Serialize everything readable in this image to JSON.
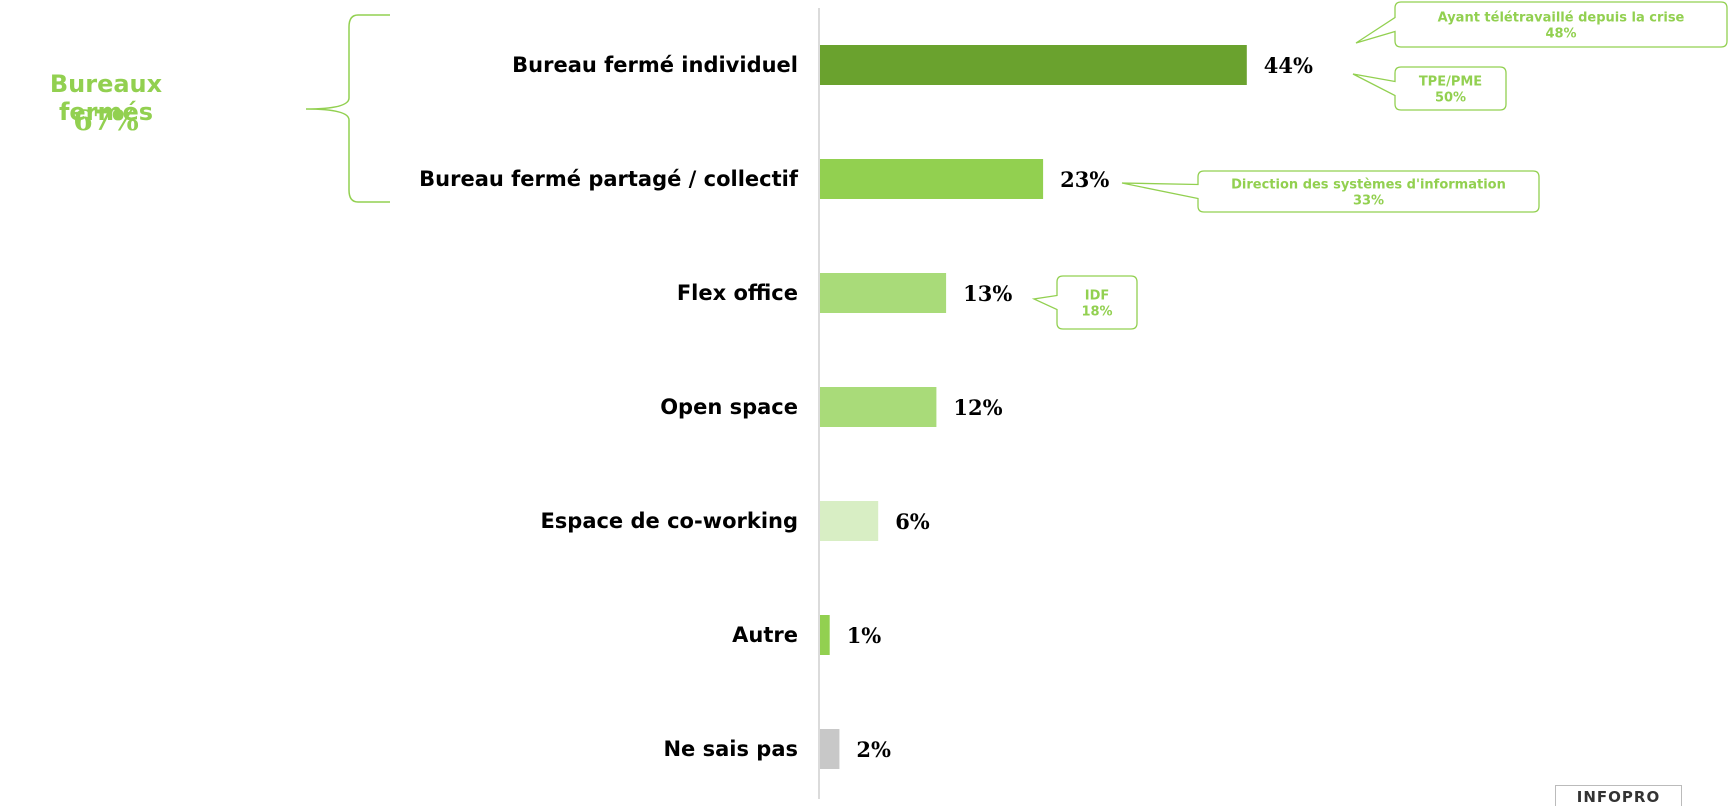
{
  "chart_data": {
    "type": "bar",
    "orientation": "horizontal",
    "categories": [
      "Bureau fermé individuel",
      "Bureau fermé partagé / collectif",
      "Flex office",
      "Open space",
      "Espace de co-working",
      "Autre",
      "Ne sais pas"
    ],
    "values": [
      44,
      23,
      13,
      12,
      6,
      1,
      2
    ],
    "value_labels": [
      "44%",
      "23%",
      "13%",
      "12%",
      "6%",
      "1%",
      "2%"
    ],
    "unit": "%",
    "bar_colors": [
      "#6aa22e",
      "#92d050",
      "#a9db79",
      "#a9db79",
      "#d8eec4",
      "#92d050",
      "#c8c8c8"
    ],
    "xlim": [
      0,
      100
    ],
    "grid": false,
    "legend": "none",
    "group_annotation": {
      "title": "Bureaux fermés",
      "value": "67%",
      "applies_to": [
        "Bureau fermé individuel",
        "Bureau fermé partagé / collectif"
      ]
    },
    "callouts": [
      {
        "category": "Bureau fermé individuel",
        "label": "Ayant télétravaillé depuis la crise",
        "value": "48%"
      },
      {
        "category": "Bureau fermé individuel",
        "label": "TPE/PME",
        "value": "50%"
      },
      {
        "category": "Bureau fermé partagé / collectif",
        "label": "Direction des systèmes d'information",
        "value": "33%"
      },
      {
        "category": "Flex office",
        "label": "IDF",
        "value": "18%"
      }
    ]
  },
  "colors": {
    "accent": "#92d050",
    "callout_border": "#92d050",
    "axis": "#cfcfcf"
  },
  "brand": "INFOPRO"
}
